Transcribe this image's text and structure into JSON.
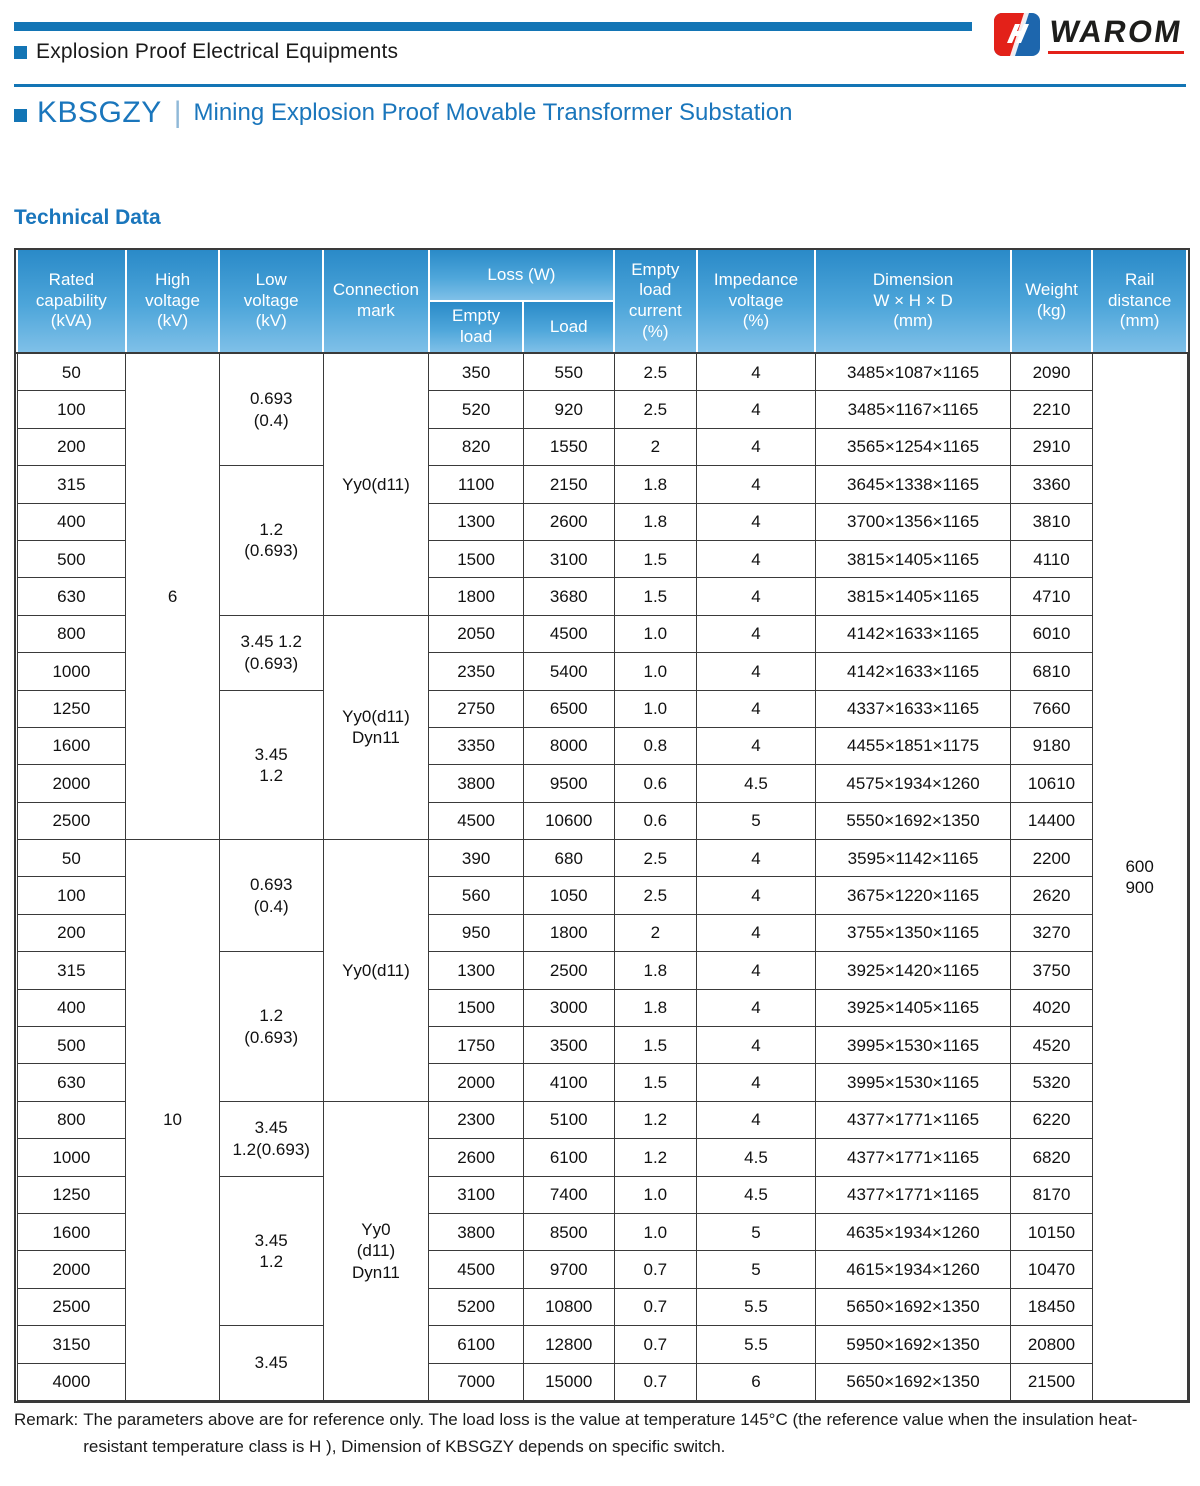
{
  "header": {
    "category": "Explosion Proof Electrical Equipments",
    "brand": "WAROM",
    "model": "KBSGZY",
    "separator": "|",
    "product_title": "Mining Explosion Proof Movable Transformer Substation"
  },
  "section_title": "Technical Data",
  "colors": {
    "accent_blue": "#1375b5",
    "header_gradient_top": "#2a8ac8",
    "header_gradient_bottom": "#7fc0e8",
    "logo_red": "#e32119",
    "logo_blue": "#1d66ad",
    "table_border": "#3a3a3a"
  },
  "table": {
    "header_rows": [
      [
        {
          "t": "Rated\ncapability\n(kVA)",
          "rs": 2,
          "n": "header-rated-capability"
        },
        {
          "t": "High\nvoltage\n(kV)",
          "rs": 2,
          "n": "header-high-voltage"
        },
        {
          "t": "Low\nvoltage\n(kV)",
          "rs": 2,
          "n": "header-low-voltage"
        },
        {
          "t": "Connection\nmark",
          "rs": 2,
          "n": "header-connection-mark"
        },
        {
          "t": "Loss (W)",
          "cs": 2,
          "cls": "loss-head",
          "n": "header-loss"
        },
        {
          "t": "Empty\nload\ncurrent\n(%)",
          "rs": 2,
          "n": "header-empty-load-current"
        },
        {
          "t": "Impedance\nvoltage\n(%)",
          "rs": 2,
          "n": "header-impedance-voltage"
        },
        {
          "t": "Dimension\nW × H × D\n(mm)",
          "rs": 2,
          "n": "header-dimension"
        },
        {
          "t": "Weight\n(kg)",
          "rs": 2,
          "n": "header-weight"
        },
        {
          "t": "Rail\ndistance\n(mm)",
          "rs": 2,
          "n": "header-rail-distance"
        }
      ],
      [
        {
          "t": "Empty\nload",
          "n": "header-empty-load"
        },
        {
          "t": "Load",
          "n": "header-load"
        }
      ]
    ],
    "body_rows": [
      [
        "50",
        {
          "t": "6",
          "rs": 13,
          "n": "high-voltage-group"
        },
        {
          "t": "0.693\n(0.4)",
          "rs": 3,
          "n": "low-voltage-group"
        },
        {
          "t": "Yy0(d11)",
          "rs": 7,
          "n": "connection-mark-group"
        },
        "350",
        "550",
        "2.5",
        "4",
        "3485×1087×1165",
        "2090",
        {
          "t": "600\n900",
          "rs": 28,
          "n": "rail-distance-cell"
        }
      ],
      [
        "100",
        "520",
        "920",
        "2.5",
        "4",
        "3485×1167×1165",
        "2210"
      ],
      [
        "200",
        "820",
        "1550",
        "2",
        "4",
        "3565×1254×1165",
        "2910"
      ],
      [
        "315",
        {
          "t": "1.2\n(0.693)",
          "rs": 4,
          "n": "low-voltage-group"
        },
        "1100",
        "2150",
        "1.8",
        "4",
        "3645×1338×1165",
        "3360"
      ],
      [
        "400",
        "1300",
        "2600",
        "1.8",
        "4",
        "3700×1356×1165",
        "3810"
      ],
      [
        "500",
        "1500",
        "3100",
        "1.5",
        "4",
        "3815×1405×1165",
        "4110"
      ],
      [
        "630",
        "1800",
        "3680",
        "1.5",
        "4",
        "3815×1405×1165",
        "4710"
      ],
      [
        "800",
        {
          "t": "3.45  1.2\n(0.693)",
          "rs": 2,
          "n": "low-voltage-group"
        },
        {
          "t": "Yy0(d11)\nDyn11",
          "rs": 6,
          "n": "connection-mark-group"
        },
        "2050",
        "4500",
        "1.0",
        "4",
        "4142×1633×1165",
        "6010"
      ],
      [
        "1000",
        "2350",
        "5400",
        "1.0",
        "4",
        "4142×1633×1165",
        "6810"
      ],
      [
        "1250",
        {
          "t": "3.45\n1.2",
          "rs": 4,
          "n": "low-voltage-group"
        },
        "2750",
        "6500",
        "1.0",
        "4",
        "4337×1633×1165",
        "7660"
      ],
      [
        "1600",
        "3350",
        "8000",
        "0.8",
        "4",
        "4455×1851×1175",
        "9180"
      ],
      [
        "2000",
        "3800",
        "9500",
        "0.6",
        "4.5",
        "4575×1934×1260",
        "10610"
      ],
      [
        "2500",
        "4500",
        "10600",
        "0.6",
        "5",
        "5550×1692×1350",
        "14400"
      ],
      [
        "50",
        {
          "t": "10",
          "rs": 15,
          "n": "high-voltage-group"
        },
        {
          "t": "0.693\n(0.4)",
          "rs": 3,
          "n": "low-voltage-group"
        },
        {
          "t": "Yy0(d11)",
          "rs": 7,
          "n": "connection-mark-group"
        },
        "390",
        "680",
        "2.5",
        "4",
        "3595×1142×1165",
        "2200"
      ],
      [
        "100",
        "560",
        "1050",
        "2.5",
        "4",
        "3675×1220×1165",
        "2620"
      ],
      [
        "200",
        "950",
        "1800",
        "2",
        "4",
        "3755×1350×1165",
        "3270"
      ],
      [
        "315",
        {
          "t": "1.2\n(0.693)",
          "rs": 4,
          "n": "low-voltage-group"
        },
        "1300",
        "2500",
        "1.8",
        "4",
        "3925×1420×1165",
        "3750"
      ],
      [
        "400",
        "1500",
        "3000",
        "1.8",
        "4",
        "3925×1405×1165",
        "4020"
      ],
      [
        "500",
        "1750",
        "3500",
        "1.5",
        "4",
        "3995×1530×1165",
        "4520"
      ],
      [
        "630",
        "2000",
        "4100",
        "1.5",
        "4",
        "3995×1530×1165",
        "5320"
      ],
      [
        "800",
        {
          "t": "3.45\n1.2(0.693)",
          "rs": 2,
          "n": "low-voltage-group"
        },
        {
          "t": "Yy0\n(d11)\nDyn11",
          "rs": 8,
          "n": "connection-mark-group"
        },
        "2300",
        "5100",
        "1.2",
        "4",
        "4377×1771×1165",
        "6220"
      ],
      [
        "1000",
        "2600",
        "6100",
        "1.2",
        "4.5",
        "4377×1771×1165",
        "6820"
      ],
      [
        "1250",
        {
          "t": "3.45\n1.2",
          "rs": 4,
          "n": "low-voltage-group"
        },
        "3100",
        "7400",
        "1.0",
        "4.5",
        "4377×1771×1165",
        "8170"
      ],
      [
        "1600",
        "3800",
        "8500",
        "1.0",
        "5",
        "4635×1934×1260",
        "10150"
      ],
      [
        "2000",
        "4500",
        "9700",
        "0.7",
        "5",
        "4615×1934×1260",
        "10470"
      ],
      [
        "2500",
        "5200",
        "10800",
        "0.7",
        "5.5",
        "5650×1692×1350",
        "18450"
      ],
      [
        "3150",
        {
          "t": "3.45",
          "rs": 2,
          "n": "low-voltage-group"
        },
        "6100",
        "12800",
        "0.7",
        "5.5",
        "5950×1692×1350",
        "20800"
      ],
      [
        "4000",
        "7000",
        "15000",
        "0.7",
        "6",
        "5650×1692×1350",
        "21500"
      ]
    ]
  },
  "remark": {
    "label": "Remark:",
    "text": "The parameters above are for reference only. The load loss is the value at temperature 145°C (the reference value when the insulation heat-resistant temperature class is H ), Dimension of KBSGZY depends on specific switch."
  }
}
